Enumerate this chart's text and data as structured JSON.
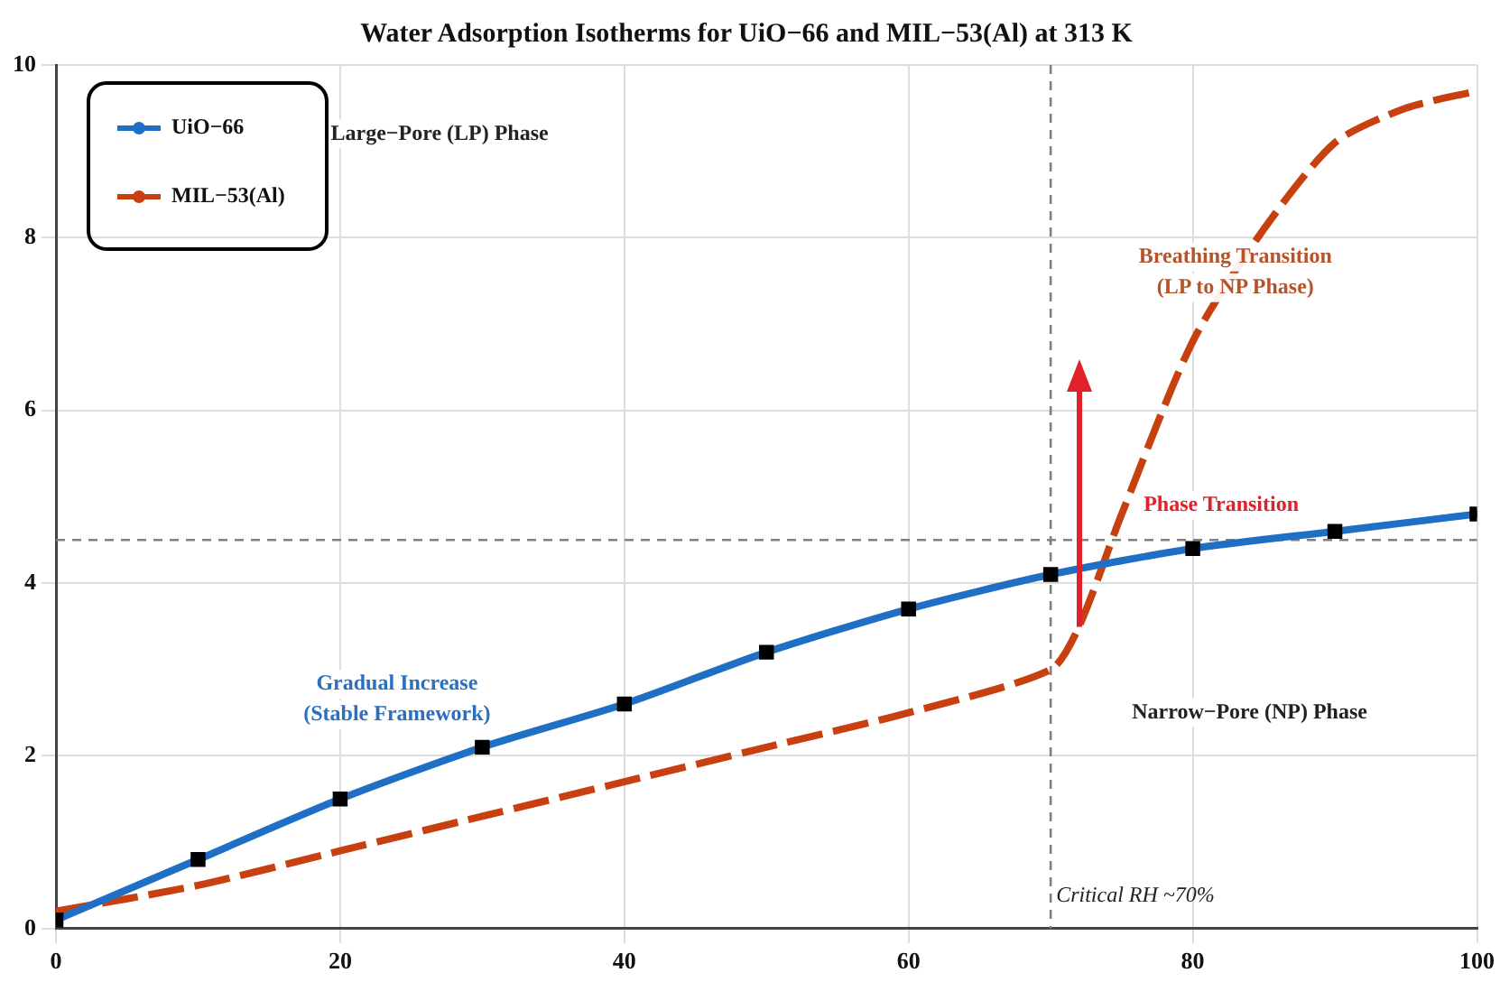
{
  "chart_data": {
    "type": "line",
    "title": "Water Adsorption Isotherms for UiO−66 and MIL−53(Al) at 313 K",
    "xlim": [
      0,
      100
    ],
    "xticks": [
      0,
      20,
      40,
      60,
      80,
      100
    ],
    "ylim": [
      0,
      10
    ],
    "yticks": [
      0,
      2,
      4,
      6,
      8,
      10
    ],
    "grid": true,
    "legend": "top left",
    "series": [
      {
        "name": "UiO−66",
        "color": "#1f6fc5",
        "marker": "square",
        "line_style": "solid",
        "x": [
          0,
          10,
          20,
          30,
          40,
          50,
          60,
          70,
          80,
          90,
          100
        ],
        "values": [
          0.1,
          0.8,
          1.5,
          2.1,
          2.6,
          3.2,
          3.7,
          4.1,
          4.4,
          4.6,
          4.8
        ]
      },
      {
        "name": "MIL−53(Al)",
        "color": "#c8400f",
        "marker": "none",
        "line_style": "dashed",
        "x": [
          0,
          10,
          20,
          30,
          40,
          50,
          60,
          70,
          72,
          75,
          80,
          85,
          90,
          95,
          100
        ],
        "values": [
          0.2,
          0.5,
          0.9,
          1.3,
          1.7,
          2.1,
          2.5,
          3.0,
          3.5,
          4.8,
          6.8,
          8.1,
          9.1,
          9.5,
          9.7
        ]
      }
    ],
    "ref_lines": [
      {
        "axis": "y",
        "value": 4.5,
        "color": "#808080",
        "line_style": "dashed"
      },
      {
        "axis": "x",
        "value": 70,
        "label": "Critical RH ~70%",
        "color": "#808080",
        "line_style": "dashed"
      }
    ],
    "annotations": [
      "Large−Pore (LP) Phase",
      "Gradual Increase\n(Stable Framework)",
      "Breathing Transition\n(LP to NP Phase)",
      "Phase Transition",
      "Narrow−Pore (NP) Phase"
    ]
  }
}
